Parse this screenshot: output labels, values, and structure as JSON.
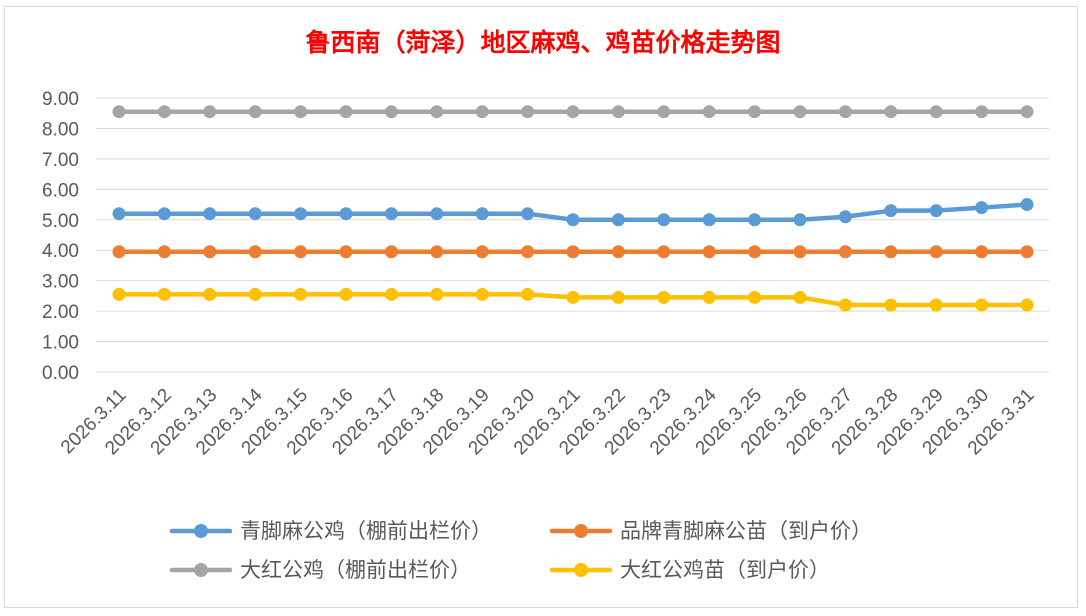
{
  "chart_data": {
    "type": "line",
    "title": "鲁西南（菏泽）地区麻鸡、鸡苗价格走势图",
    "xlabel": "",
    "ylabel": "",
    "ylim": [
      0,
      9
    ],
    "yticks": [
      "0.00",
      "1.00",
      "2.00",
      "3.00",
      "4.00",
      "5.00",
      "6.00",
      "7.00",
      "8.00",
      "9.00"
    ],
    "grid": true,
    "legend_position": "bottom",
    "categories": [
      "2026.3.11",
      "2026.3.12",
      "2026.3.13",
      "2026.3.14",
      "2026.3.15",
      "2026.3.16",
      "2026.3.17",
      "2026.3.18",
      "2026.3.19",
      "2026.3.20",
      "2026.3.21",
      "2026.3.22",
      "2026.3.23",
      "2026.3.24",
      "2026.3.25",
      "2026.3.26",
      "2026.3.27",
      "2026.3.28",
      "2026.3.29",
      "2026.3.30",
      "2026.3.31"
    ],
    "series": [
      {
        "name": "青脚麻公鸡（棚前出栏价）",
        "color": "#5b9bd5",
        "values": [
          5.2,
          5.2,
          5.2,
          5.2,
          5.2,
          5.2,
          5.2,
          5.2,
          5.2,
          5.2,
          5.0,
          5.0,
          5.0,
          5.0,
          5.0,
          5.0,
          5.1,
          5.3,
          5.3,
          5.4,
          5.5
        ]
      },
      {
        "name": "品牌青脚麻公苗（到户价）",
        "color": "#ed7d31",
        "values": [
          3.95,
          3.95,
          3.95,
          3.95,
          3.95,
          3.95,
          3.95,
          3.95,
          3.95,
          3.95,
          3.95,
          3.95,
          3.95,
          3.95,
          3.95,
          3.95,
          3.95,
          3.95,
          3.95,
          3.95,
          3.95
        ]
      },
      {
        "name": "大红公鸡（棚前出栏价）",
        "color": "#a5a5a5",
        "values": [
          8.55,
          8.55,
          8.55,
          8.55,
          8.55,
          8.55,
          8.55,
          8.55,
          8.55,
          8.55,
          8.55,
          8.55,
          8.55,
          8.55,
          8.55,
          8.55,
          8.55,
          8.55,
          8.55,
          8.55,
          8.55
        ]
      },
      {
        "name": "大红公鸡苗（到户价）",
        "color": "#ffc000",
        "values": [
          2.55,
          2.55,
          2.55,
          2.55,
          2.55,
          2.55,
          2.55,
          2.55,
          2.55,
          2.55,
          2.45,
          2.45,
          2.45,
          2.45,
          2.45,
          2.45,
          2.2,
          2.2,
          2.2,
          2.2,
          2.2
        ]
      }
    ]
  }
}
